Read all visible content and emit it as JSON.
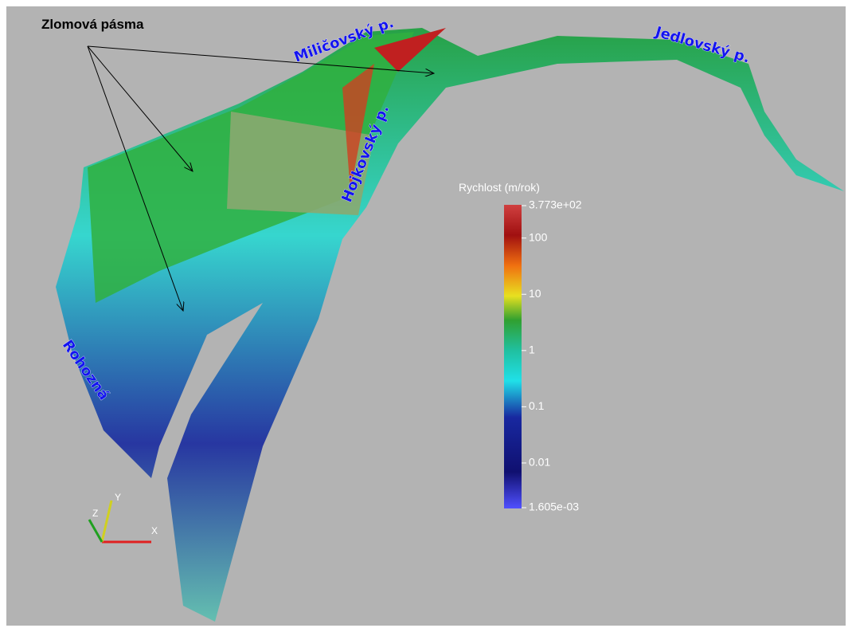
{
  "annotations": {
    "fault_zones": "Zlomová pásma",
    "labels": [
      "Miličovský p.",
      "Jedlovský p.",
      "Hojkovský p.",
      "Rohozná"
    ]
  },
  "colorbar": {
    "title": "Rychlost (m/rok)",
    "scale": "log",
    "ticks": [
      {
        "value": 377.3,
        "label": "3.773e+02"
      },
      100,
      10,
      1,
      0.1,
      0.01,
      {
        "value": 0.001605,
        "label": "1.605e-03"
      }
    ]
  },
  "axes_triad": {
    "x": "X",
    "y": "Y",
    "z": "Z"
  }
}
